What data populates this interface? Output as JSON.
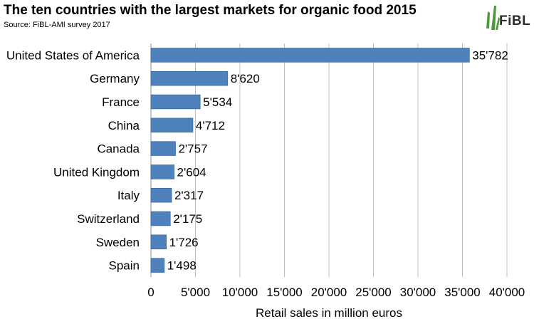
{
  "header": {
    "title": "The ten countries with the largest markets for organic food  2015",
    "source": "Source: FiBL-AMI survey 2017",
    "logo_text": "FiBL"
  },
  "chart_data": {
    "type": "bar",
    "orientation": "horizontal",
    "title": "The ten countries with the largest markets for organic food  2015",
    "xlabel": "Retail sales in million euros",
    "ylabel": "",
    "xlim": [
      0,
      40000
    ],
    "xticks": [
      0,
      5000,
      10000,
      15000,
      20000,
      25000,
      30000,
      35000,
      40000
    ],
    "xtick_labels": [
      "0",
      "5'000",
      "10'000",
      "15'000",
      "20'000",
      "25'000",
      "30'000",
      "35'000",
      "40'000"
    ],
    "grid": "vertical",
    "legend": "none",
    "bar_color": "#4f81bd",
    "categories": [
      "United States of America",
      "Germany",
      "France",
      "China",
      "Canada",
      "United Kingdom",
      "Italy",
      "Switzerland",
      "Sweden",
      "Spain"
    ],
    "values": [
      35782,
      8620,
      5534,
      4712,
      2757,
      2604,
      2317,
      2175,
      1726,
      1498
    ],
    "value_labels": [
      "35'782",
      "8'620",
      "5'534",
      "4'712",
      "2'757",
      "2'604",
      "2'317",
      "2'175",
      "1'726",
      "1'498"
    ]
  }
}
